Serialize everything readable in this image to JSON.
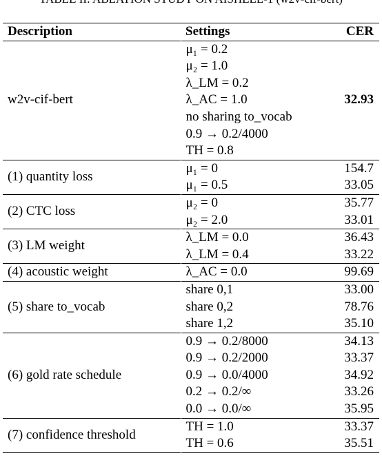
{
  "caption": "TABLE II: ABLATION STUDY ON AISHELL-1 (w2v-cif-bert)",
  "table": {
    "headers": {
      "description": "Description",
      "settings": "Settings",
      "cer": "CER"
    },
    "groups": [
      {
        "description": "w2v-cif-bert",
        "rows": [
          {
            "setting": "μ₁ = 0.2",
            "cer": ""
          },
          {
            "setting": "μ₂ = 1.0",
            "cer": ""
          },
          {
            "setting": "λ_LM = 0.2",
            "cer": ""
          },
          {
            "setting": "λ_AC = 1.0",
            "cer": "32.93"
          },
          {
            "setting": "no sharing to_vocab",
            "cer": ""
          },
          {
            "setting": "0.9 → 0.2/4000",
            "cer": ""
          },
          {
            "setting": "TH = 0.8",
            "cer": ""
          }
        ]
      },
      {
        "description": "(1) quantity loss",
        "rows": [
          {
            "setting": "μ₁ = 0",
            "cer": "154.7"
          },
          {
            "setting": "μ₁ = 0.5",
            "cer": "33.05"
          }
        ]
      },
      {
        "description": "(2) CTC loss",
        "rows": [
          {
            "setting": "μ₂ = 0",
            "cer": "35.77"
          },
          {
            "setting": "μ₂ = 2.0",
            "cer": "33.01"
          }
        ]
      },
      {
        "description": "(3) LM weight",
        "rows": [
          {
            "setting": "λ_LM = 0.0",
            "cer": "36.43"
          },
          {
            "setting": "λ_LM = 0.4",
            "cer": "33.22"
          }
        ]
      },
      {
        "description": "(4) acoustic weight",
        "rows": [
          {
            "setting": "λ_AC = 0.0",
            "cer": "99.69"
          }
        ]
      },
      {
        "description": "(5) share to_vocab",
        "rows": [
          {
            "setting": "share 0,1",
            "cer": "33.00"
          },
          {
            "setting": "share 0,2",
            "cer": "78.76"
          },
          {
            "setting": "share 1,2",
            "cer": "35.10"
          }
        ]
      },
      {
        "description": "(6) gold rate schedule",
        "rows": [
          {
            "setting": "0.9 → 0.2/8000",
            "cer": "34.13"
          },
          {
            "setting": "0.9 → 0.2/2000",
            "cer": "33.37"
          },
          {
            "setting": "0.9 → 0.0/4000",
            "cer": "34.92"
          },
          {
            "setting": "0.2 → 0.2/∞",
            "cer": "33.26"
          },
          {
            "setting": "0.0 → 0.0/∞",
            "cer": "35.95"
          }
        ]
      },
      {
        "description": "(7) confidence threshold",
        "rows": [
          {
            "setting": "TH = 1.0",
            "cer": "33.37"
          },
          {
            "setting": "TH = 0.6",
            "cer": "35.51"
          }
        ]
      }
    ]
  }
}
